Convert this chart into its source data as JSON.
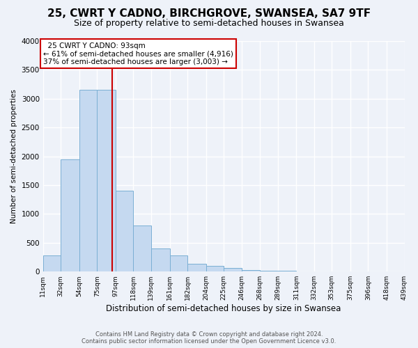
{
  "title": "25, CWRT Y CADNO, BIRCHGROVE, SWANSEA, SA7 9TF",
  "subtitle": "Size of property relative to semi-detached houses in Swansea",
  "xlabel": "Distribution of semi-detached houses by size in Swansea",
  "ylabel": "Number of semi-detached properties",
  "property_size": 93,
  "property_label": "25 CWRT Y CADNO: 93sqm",
  "annotation_line1": "← 61% of semi-detached houses are smaller (4,916)",
  "annotation_line2": "37% of semi-detached houses are larger (3,003) →",
  "footer_line1": "Contains HM Land Registry data © Crown copyright and database right 2024.",
  "footer_line2": "Contains public sector information licensed under the Open Government Licence v3.0.",
  "bar_color": "#c5d9f0",
  "bar_edge_color": "#7aafd4",
  "vline_color": "#cc0000",
  "annotation_box_color": "#cc0000",
  "bins": [
    11,
    32,
    54,
    75,
    97,
    118,
    139,
    161,
    182,
    204,
    225,
    246,
    268,
    289,
    311,
    332,
    353,
    375,
    396,
    418,
    439
  ],
  "counts": [
    280,
    1950,
    3150,
    3150,
    1400,
    800,
    400,
    280,
    130,
    100,
    60,
    30,
    20,
    10,
    5,
    3,
    2,
    1,
    1,
    0
  ],
  "ylim": [
    0,
    4000
  ],
  "yticks": [
    0,
    500,
    1000,
    1500,
    2000,
    2500,
    3000,
    3500,
    4000
  ],
  "background_color": "#eef2f9",
  "grid_color": "#ffffff",
  "title_fontsize": 11,
  "subtitle_fontsize": 9
}
